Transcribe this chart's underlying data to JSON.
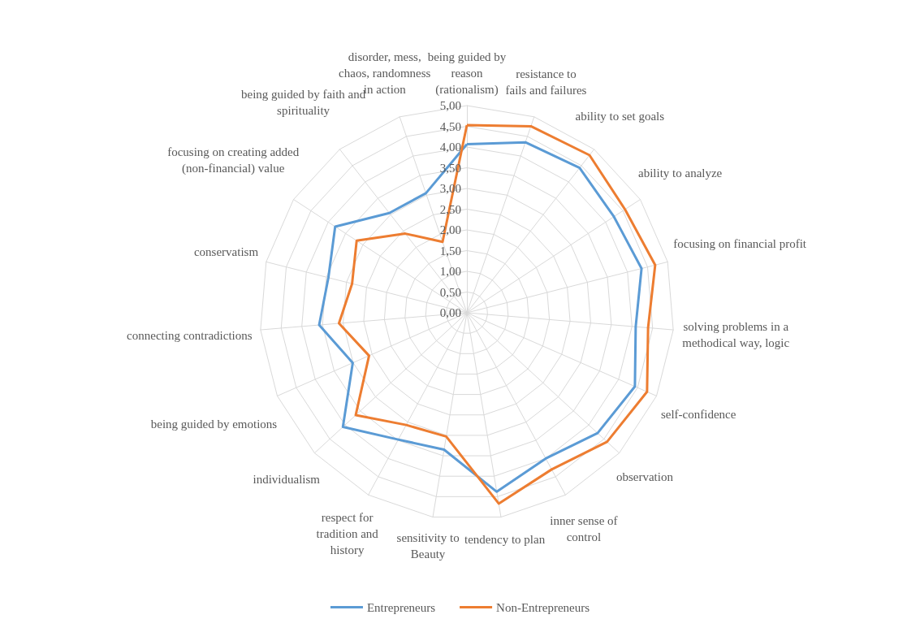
{
  "chart_data": {
    "type": "radar",
    "categories": [
      "being guided by reason (rationalism)",
      "resistance to fails and failures",
      "ability to set goals",
      "ability to analyze",
      "focusing on financial profit",
      "solving problems in a methodical way, logic",
      "self-confidence",
      "observation",
      "inner sense of control",
      "tendency to plan",
      "sensitivity to Beauty",
      "respect for tradition and history",
      "individualism",
      "being guided by emotions",
      "connecting contradictions",
      "conservatism",
      "focusing on creating added (non-financial) value",
      "being guided by faith and spirituality",
      "disorder, mess, chaos, randomness in action"
    ],
    "series": [
      {
        "name": "Entrepreneurs",
        "color": "#5b9bd5",
        "values": [
          4.07,
          4.35,
          4.43,
          4.24,
          4.35,
          4.09,
          4.43,
          4.29,
          4.0,
          4.38,
          3.35,
          3.48,
          4.07,
          3.01,
          3.58,
          3.45,
          3.8,
          3.05,
          3.05
        ]
      },
      {
        "name": "Non-Entrepreneurs",
        "color": "#ed7d31",
        "values": [
          4.53,
          4.76,
          4.82,
          4.56,
          4.69,
          4.39,
          4.75,
          4.6,
          4.3,
          4.67,
          3.03,
          3.08,
          3.65,
          2.58,
          3.1,
          2.86,
          3.18,
          2.42,
          1.81
        ]
      }
    ],
    "ylim": [
      0,
      5
    ],
    "yticks": [
      {
        "value": 0,
        "label": "0,00"
      },
      {
        "value": 0.5,
        "label": "0,50"
      },
      {
        "value": 1,
        "label": "1,00"
      },
      {
        "value": 1.5,
        "label": "1,50"
      },
      {
        "value": 2,
        "label": "2,00"
      },
      {
        "value": 2.5,
        "label": "2,50"
      },
      {
        "value": 3,
        "label": "3,00"
      },
      {
        "value": 3.5,
        "label": "3,50"
      },
      {
        "value": 4,
        "label": "4,00"
      },
      {
        "value": 4.5,
        "label": "4,50"
      },
      {
        "value": 5,
        "label": "5,00"
      }
    ],
    "legend": "bottom",
    "marker": "none",
    "line_style": "solid",
    "grid": true
  }
}
